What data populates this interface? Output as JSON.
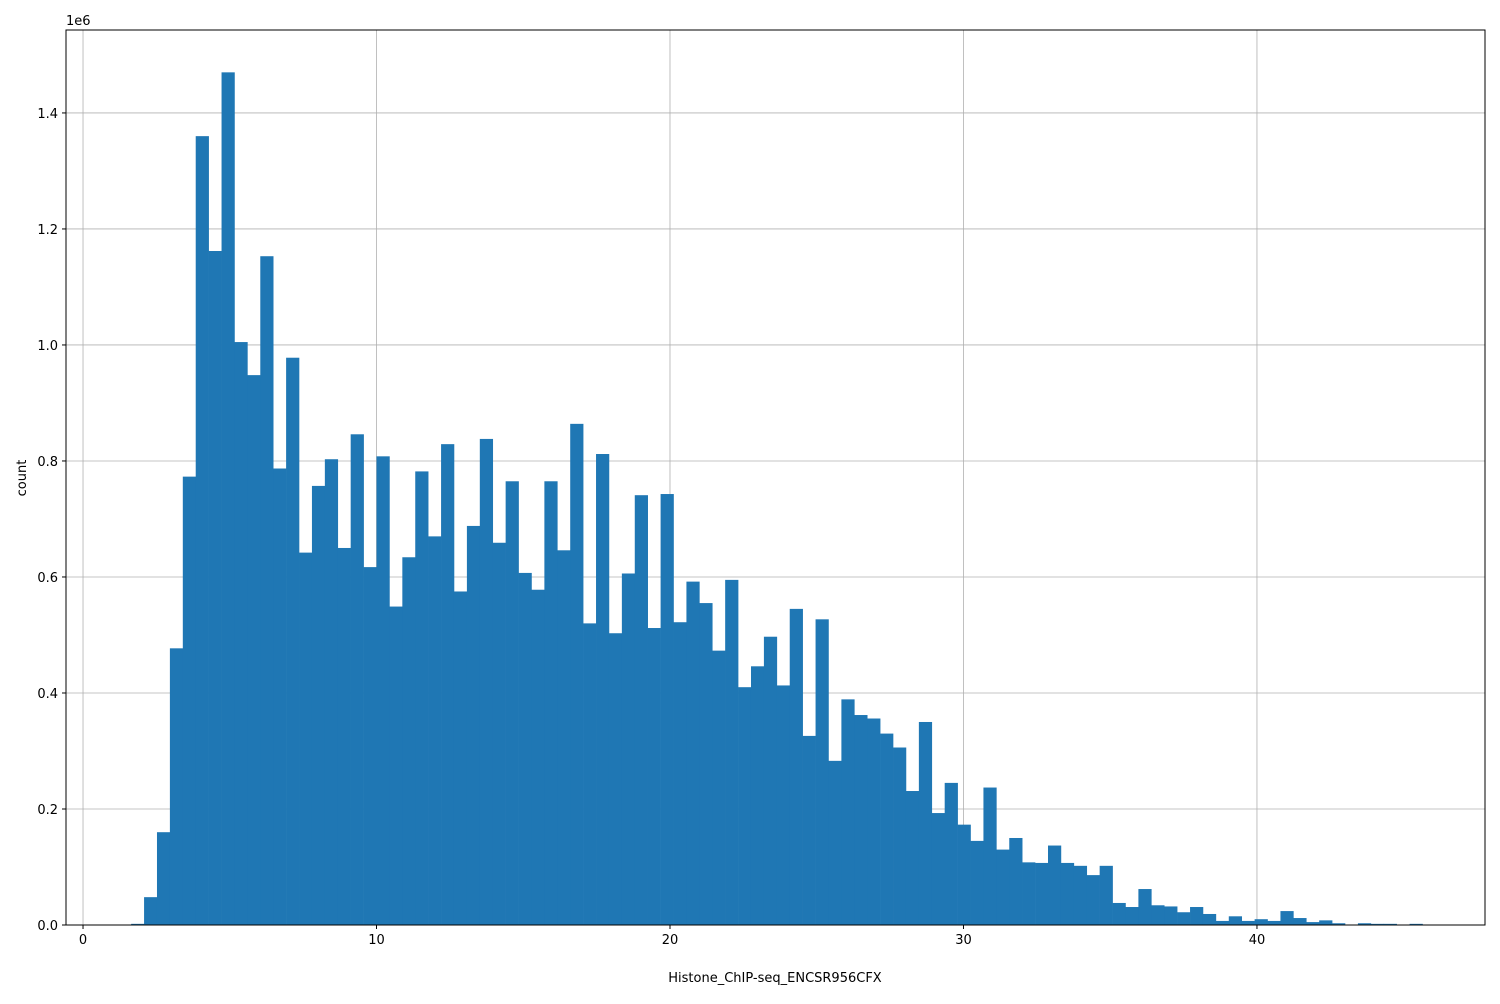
{
  "chart_data": {
    "type": "bar",
    "histogram": true,
    "xlabel": "Histone_ChIP-seq_ENCSR956CFX",
    "ylabel": "count",
    "y_offset_label": "1e6",
    "xlim": [
      -0.58,
      47.77
    ],
    "ylim": [
      0,
      1543000
    ],
    "grid": true,
    "bar_color": "#1f77b4",
    "bin_start": 1.64,
    "bin_width": 0.44,
    "xticks": [
      0,
      10,
      20,
      30,
      40
    ],
    "xtick_labels": [
      "0",
      "10",
      "20",
      "30",
      "40"
    ],
    "yticks": [
      0,
      200000,
      400000,
      600000,
      800000,
      1000000,
      1200000,
      1400000
    ],
    "ytick_labels": [
      "0.0",
      "0.2",
      "0.4",
      "0.6",
      "0.8",
      "1.0",
      "1.2",
      "1.4"
    ],
    "values": [
      2000,
      48000,
      160000,
      477000,
      773000,
      1360000,
      1162000,
      1470000,
      1005000,
      948000,
      1153000,
      787000,
      978000,
      642000,
      757000,
      803000,
      650000,
      846000,
      617000,
      808000,
      549000,
      634000,
      782000,
      670000,
      829000,
      575000,
      688000,
      838000,
      659000,
      765000,
      607000,
      578000,
      765000,
      646000,
      864000,
      520000,
      812000,
      503000,
      606000,
      741000,
      512000,
      743000,
      522000,
      592000,
      555000,
      473000,
      595000,
      410000,
      446000,
      497000,
      413000,
      545000,
      326000,
      527000,
      283000,
      389000,
      362000,
      356000,
      330000,
      306000,
      231000,
      350000,
      193000,
      245000,
      173000,
      145000,
      237000,
      130000,
      150000,
      108000,
      107000,
      137000,
      107000,
      102000,
      86000,
      102000,
      38000,
      31000,
      62000,
      34000,
      32000,
      22000,
      31000,
      19000,
      7000,
      15000,
      7000,
      10000,
      7000,
      24000,
      12000,
      5000,
      8000,
      3000,
      500,
      3000,
      2000,
      2000,
      500,
      2000
    ]
  }
}
